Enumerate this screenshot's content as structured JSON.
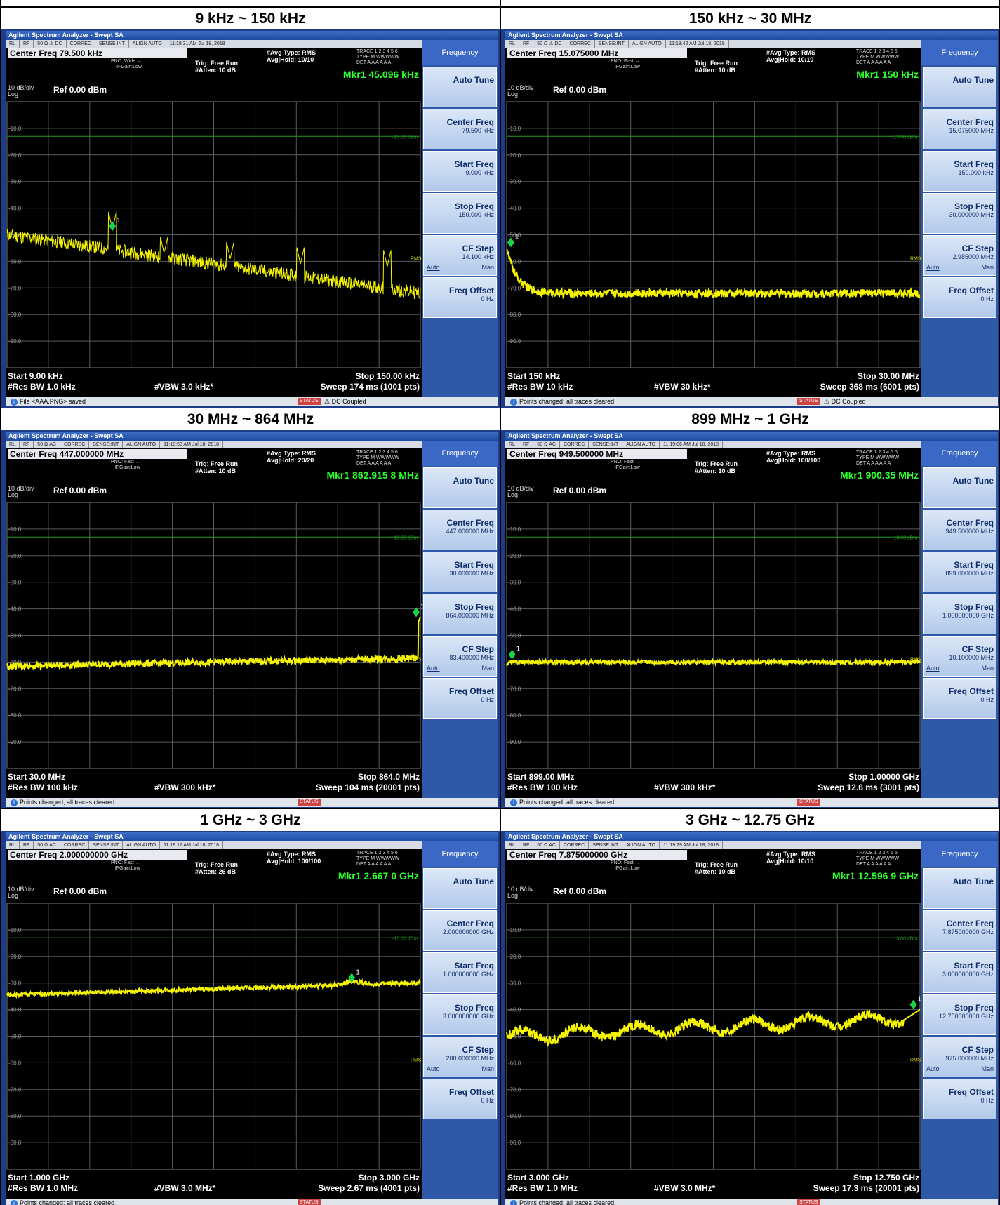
{
  "panels": [
    {
      "title": "9 kHz ~ 150 kHz",
      "window_title": "Agilent Spectrum Analyzer - Swept SA",
      "status_bar": [
        "RL",
        "RF",
        "50 Ω ⚠ DC",
        "CORREC",
        "SENSE:INT",
        "ALIGN AUTO",
        "11:18:31 AM Jul 18, 2018"
      ],
      "center_freq": "Center Freq 79.500 kHz",
      "pno_lines": [
        "PNO: Wide ↔",
        "IFGain:Low"
      ],
      "trig_lines": [
        "Trig: Free Run",
        "#Atten: 10 dB"
      ],
      "avg_lines": [
        "#Avg Type: RMS",
        "Avg|Hold: 10/10"
      ],
      "trace_lines": [
        "TRACE 1 2 3 4 5 6",
        "TYPE M WWWWW",
        "DET A A A A A A"
      ],
      "marker_freq": "Mkr1 45.096 kHz",
      "marker_amp": "-48.625 dBm",
      "scale": "10 dB/div",
      "log_label": "Log",
      "ref_level": "Ref 0.00 dBm",
      "y_ticks": [
        "-10.0",
        "-20.0",
        "-30.0",
        "-40.0",
        "-50.0",
        "-60.0",
        "-70.0",
        "-80.0",
        "-90.0"
      ],
      "limit_label": "-13.00 dBm",
      "limit_dbm": -13,
      "detector_tag": "RMS",
      "trace_kind": "low",
      "marker_x_frac": 0.255,
      "marker_dbm": -48.6,
      "start": "Start 9.00 kHz",
      "res_bw": "#Res BW 1.0 kHz",
      "vbw": "#VBW 3.0 kHz*",
      "stop": "Stop 150.00 kHz",
      "sweep": "Sweep  174 ms (1001 pts)",
      "msg": "File <AAA.PNG> saved",
      "status_label": "STATUS",
      "dc_coupled": "⚠ DC Coupled",
      "softkey_header": "Frequency",
      "softkeys": [
        {
          "title": "Auto Tune",
          "value": ""
        },
        {
          "title": "Center Freq",
          "value": "79.500 kHz"
        },
        {
          "title": "Start Freq",
          "value": "9.000 kHz"
        },
        {
          "title": "Stop Freq",
          "value": "150.000 kHz"
        },
        {
          "title": "CF Step",
          "value": "14.100 kHz",
          "auto": "Auto",
          "man": "Man"
        },
        {
          "title": "Freq Offset",
          "value": "0 Hz"
        }
      ]
    },
    {
      "title": "150 kHz ~ 30 MHz",
      "window_title": "Agilent Spectrum Analyzer - Swept SA",
      "status_bar": [
        "RL",
        "RF",
        "50 Ω ⚠ DC",
        "CORREC",
        "SENSE:INT",
        "ALIGN AUTO",
        "11:18:42 AM Jul 18, 2018"
      ],
      "center_freq": "Center Freq 15.075000 MHz",
      "pno_lines": [
        "PNO: Fast ↔",
        "IFGain:Low"
      ],
      "trig_lines": [
        "Trig: Free Run",
        "#Atten: 10 dB"
      ],
      "avg_lines": [
        "#Avg Type: RMS",
        "Avg|Hold: 10/10"
      ],
      "trace_lines": [
        "TRACE 1 2 3 4 5 6",
        "TYPE M WWWWW",
        "DET A A A A A A"
      ],
      "marker_freq": "Mkr1 150 kHz",
      "marker_amp": "-54.710 dBm",
      "scale": "10 dB/div",
      "log_label": "Log",
      "ref_level": "Ref 0.00 dBm",
      "y_ticks": [
        "-10.0",
        "-20.0",
        "-30.0",
        "-40.0",
        "-50.0",
        "-60.0",
        "-70.0",
        "-80.0",
        "-90.0"
      ],
      "limit_label": "-13.00 dBm",
      "limit_dbm": -13,
      "detector_tag": "RMS",
      "trace_kind": "decay",
      "marker_x_frac": 0.0,
      "marker_dbm": -54.7,
      "start": "Start 150 kHz",
      "res_bw": "#Res BW 10 kHz",
      "vbw": "#VBW 30 kHz*",
      "stop": "Stop 30.00 MHz",
      "sweep": "Sweep  368 ms (6001 pts)",
      "msg": "Points changed; all traces cleared",
      "status_label": "STATUS",
      "dc_coupled": "⚠ DC Coupled",
      "softkey_header": "Frequency",
      "softkeys": [
        {
          "title": "Auto Tune",
          "value": ""
        },
        {
          "title": "Center Freq",
          "value": "15.075000 MHz"
        },
        {
          "title": "Start Freq",
          "value": "150.000 kHz"
        },
        {
          "title": "Stop Freq",
          "value": "30.000000 MHz"
        },
        {
          "title": "CF Step",
          "value": "2.985000 MHz",
          "auto": "Auto",
          "man": "Man"
        },
        {
          "title": "Freq Offset",
          "value": "0 Hz"
        }
      ]
    },
    {
      "title": "30 MHz ~ 864 MHz",
      "window_title": "Agilent Spectrum Analyzer - Swept SA",
      "status_bar": [
        "RL",
        "RF",
        "50 Ω  AC",
        "CORREC",
        "SENSE:INT",
        "ALIGN AUTO",
        "11:18:53 AM Jul 18, 2018"
      ],
      "center_freq": "Center Freq 447.000000 MHz",
      "pno_lines": [
        "PNO: Fast ↔",
        "IFGain:Low"
      ],
      "trig_lines": [
        "Trig: Free Run",
        "#Atten: 10 dB"
      ],
      "avg_lines": [
        "#Avg Type: RMS",
        "Avg|Hold: 20/20"
      ],
      "trace_lines": [
        "TRACE 1 2 3 4 5 6",
        "TYPE M WWWWW",
        "DET A A A A A A"
      ],
      "marker_freq": "Mkr1 862.915 8 MHz",
      "marker_amp": "-43.062 dBm",
      "scale": "10 dB/div",
      "log_label": "Log",
      "ref_level": "Ref 0.00 dBm",
      "y_ticks": [
        "-10.0",
        "-20.0",
        "-30.0",
        "-40.0",
        "-50.0",
        "-60.0",
        "-70.0",
        "-80.0",
        "-90.0"
      ],
      "limit_label": "-13.00 dBm",
      "limit_dbm": -13,
      "detector_tag": "RMS",
      "trace_kind": "flat_rise",
      "marker_x_frac": 0.998,
      "marker_dbm": -43.1,
      "start": "Start 30.0 MHz",
      "res_bw": "#Res BW 100 kHz",
      "vbw": "#VBW 300 kHz*",
      "stop": "Stop 864.0 MHz",
      "sweep": "Sweep  104 ms (20001 pts)",
      "msg": "Points changed; all traces cleared",
      "status_label": "STATUS",
      "dc_coupled": "",
      "softkey_header": "Frequency",
      "softkeys": [
        {
          "title": "Auto Tune",
          "value": ""
        },
        {
          "title": "Center Freq",
          "value": "447.000000 MHz"
        },
        {
          "title": "Start Freq",
          "value": "30.000000 MHz"
        },
        {
          "title": "Stop Freq",
          "value": "864.000000 MHz"
        },
        {
          "title": "CF Step",
          "value": "83.400000 MHz",
          "auto": "Auto",
          "man": "Man"
        },
        {
          "title": "Freq Offset",
          "value": "0 Hz"
        }
      ]
    },
    {
      "title": "899 MHz ~ 1 GHz",
      "window_title": "Agilent Spectrum Analyzer - Swept SA",
      "status_bar": [
        "RL",
        "RF",
        "50 Ω  AC",
        "CORREC",
        "SENSE:INT",
        "ALIGN AUTO",
        "11:19:06 AM Jul 18, 2018"
      ],
      "center_freq": "Center Freq 949.500000 MHz",
      "pno_lines": [
        "PNO: Fast ↔",
        "IFGain:Low"
      ],
      "trig_lines": [
        "Trig: Free Run",
        "#Atten: 10 dB"
      ],
      "avg_lines": [
        "#Avg Type: RMS",
        "Avg|Hold: 100/100"
      ],
      "trace_lines": [
        "TRACE 1 2 3 4 5 6",
        "TYPE M WWWWW",
        "DET A A A A A A"
      ],
      "marker_freq": "Mkr1 900.35 MHz",
      "marker_amp": "-59.009 dBm",
      "scale": "10 dB/div",
      "log_label": "Log",
      "ref_level": "Ref 0.00 dBm",
      "y_ticks": [
        "-10.0",
        "-20.0",
        "-30.0",
        "-40.0",
        "-50.0",
        "-60.0",
        "-70.0",
        "-80.0",
        "-90.0"
      ],
      "limit_label": "-13.00 dBm",
      "limit_dbm": -13,
      "detector_tag": "RMS",
      "trace_kind": "flat60",
      "marker_x_frac": 0.013,
      "marker_dbm": -59.0,
      "start": "Start 899.00 MHz",
      "res_bw": "#Res BW 100 kHz",
      "vbw": "#VBW 300 kHz*",
      "stop": "Stop 1.00000 GHz",
      "sweep": "Sweep  12.6 ms (3001 pts)",
      "msg": "Points changed; all traces cleared",
      "status_label": "STATUS",
      "dc_coupled": "",
      "softkey_header": "Frequency",
      "softkeys": [
        {
          "title": "Auto Tune",
          "value": ""
        },
        {
          "title": "Center Freq",
          "value": "949.500000 MHz"
        },
        {
          "title": "Start Freq",
          "value": "899.000000 MHz"
        },
        {
          "title": "Stop Freq",
          "value": "1.000000000 GHz"
        },
        {
          "title": "CF Step",
          "value": "10.100000 MHz",
          "auto": "Auto",
          "man": "Man"
        },
        {
          "title": "Freq Offset",
          "value": "0 Hz"
        }
      ]
    },
    {
      "title": "1 GHz ~ 3 GHz",
      "window_title": "Agilent Spectrum Analyzer - Swept SA",
      "status_bar": [
        "RL",
        "RF",
        "50 Ω  AC",
        "CORREC",
        "SENSE:INT",
        "ALIGN AUTO",
        "11:19:17 AM Jul 18, 2018"
      ],
      "center_freq": "Center Freq 2.000000000 GHz",
      "pno_lines": [
        "PNO: Fast ↔",
        "IFGain:Low"
      ],
      "trig_lines": [
        "Trig: Free Run",
        "#Atten: 26 dB"
      ],
      "avg_lines": [
        "#Avg Type: RMS",
        "Avg|Hold: 100/100"
      ],
      "trace_lines": [
        "TRACE 1 2 3 4 5 6",
        "TYPE M WWWWW",
        "DET A A A A A A"
      ],
      "marker_freq": "Mkr1 2.667 0 GHz",
      "marker_amp": "-29.935 dBm",
      "scale": "10 dB/div",
      "log_label": "Log",
      "ref_level": "Ref 0.00 dBm",
      "y_ticks": [
        "-10.0",
        "-20.0",
        "-30.0",
        "-40.0",
        "-50.0",
        "-60.0",
        "-70.0",
        "-80.0",
        "-90.0"
      ],
      "limit_label": "-13.00 dBm",
      "limit_dbm": -13,
      "detector_tag": "RMS",
      "trace_kind": "rise30",
      "marker_x_frac": 0.834,
      "marker_dbm": -29.9,
      "start": "Start 1.000 GHz",
      "res_bw": "#Res BW 1.0 MHz",
      "vbw": "#VBW 3.0 MHz*",
      "stop": "Stop 3.000 GHz",
      "sweep": "Sweep  2.67 ms (4001 pts)",
      "msg": "Points changed; all traces cleared",
      "status_label": "STATUS",
      "dc_coupled": "",
      "softkey_header": "Frequency",
      "softkeys": [
        {
          "title": "Auto Tune",
          "value": ""
        },
        {
          "title": "Center Freq",
          "value": "2.000000000 GHz"
        },
        {
          "title": "Start Freq",
          "value": "1.000000000 GHz"
        },
        {
          "title": "Stop Freq",
          "value": "3.000000000 GHz"
        },
        {
          "title": "CF Step",
          "value": "200.000000 MHz",
          "auto": "Auto",
          "man": "Man"
        },
        {
          "title": "Freq Offset",
          "value": "0 Hz"
        }
      ]
    },
    {
      "title": "3 GHz ~ 12.75 GHz",
      "window_title": "Agilent Spectrum Analyzer - Swept SA",
      "status_bar": [
        "RL",
        "RF",
        "50 Ω  AC",
        "CORREC",
        "SENSE:INT",
        "ALIGN AUTO",
        "11:19:29 AM Jul 18, 2018"
      ],
      "center_freq": "Center Freq 7.875000000 GHz",
      "pno_lines": [
        "PNO: Fast ↔",
        "IFGain:Low"
      ],
      "trig_lines": [
        "Trig: Free Run",
        "#Atten: 10 dB"
      ],
      "avg_lines": [
        "#Avg Type: RMS",
        "Avg|Hold: 10/10"
      ],
      "trace_lines": [
        "TRACE 1 2 3 4 5 6",
        "TYPE M WWWWW",
        "DET A A A A A A"
      ],
      "marker_freq": "Mkr1 12.596 9 GHz",
      "marker_amp": "-39.985 dBm",
      "scale": "10 dB/div",
      "log_label": "Log",
      "ref_level": "Ref 0.00 dBm",
      "y_ticks": [
        "-10.0",
        "-20.0",
        "-30.0",
        "-40.0",
        "-50.0",
        "-60.0",
        "-70.0",
        "-80.0",
        "-90.0"
      ],
      "limit_label": "-13.00 dBm",
      "limit_dbm": -13,
      "detector_tag": "RMS",
      "trace_kind": "wavy45",
      "marker_x_frac": 0.984,
      "marker_dbm": -40.0,
      "start": "Start 3.000 GHz",
      "res_bw": "#Res BW 1.0 MHz",
      "vbw": "#VBW 3.0 MHz*",
      "stop": "Stop 12.750 GHz",
      "sweep": "Sweep  17.3 ms (20001 pts)",
      "msg": "Points changed; all traces cleared",
      "status_label": "STATUS",
      "dc_coupled": "",
      "softkey_header": "Frequency",
      "softkeys": [
        {
          "title": "Auto Tune",
          "value": ""
        },
        {
          "title": "Center Freq",
          "value": "7.875000000 GHz"
        },
        {
          "title": "Start Freq",
          "value": "3.000000000 GHz"
        },
        {
          "title": "Stop Freq",
          "value": "12.750000000 GHz"
        },
        {
          "title": "CF Step",
          "value": "975.000000 MHz",
          "auto": "Auto",
          "man": "Man"
        },
        {
          "title": "Freq Offset",
          "value": "0 Hz"
        }
      ]
    }
  ],
  "colors": {
    "trace": "#f5f500",
    "marker": "#19d34a",
    "limit": "#1f9b1f",
    "grid": "#5a5a5a"
  }
}
